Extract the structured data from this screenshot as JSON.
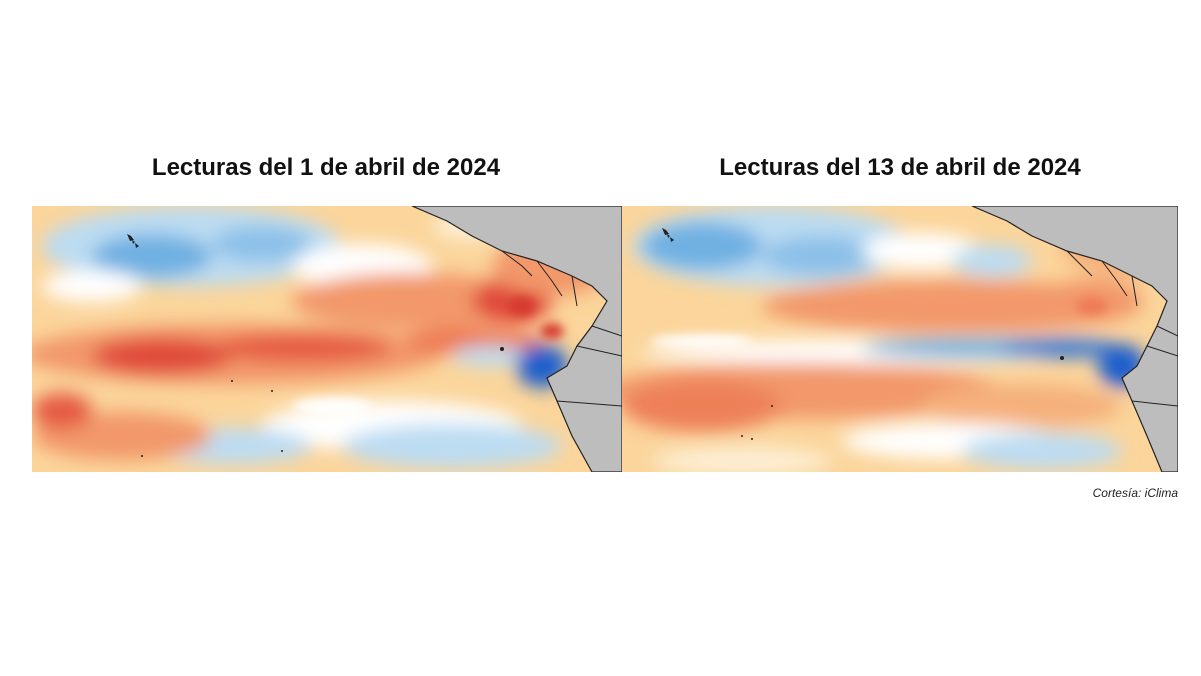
{
  "panels": [
    {
      "title": "Lecturas del 1 de abril de 2024",
      "map": "sea-surface-temperature-anomaly-map"
    },
    {
      "title": "Lecturas del 13 de abril de 2024",
      "map": "sea-surface-temperature-anomaly-map"
    }
  ],
  "credit": "Cortesía: iClima",
  "colors": {
    "warm_strong": "#e04a3a",
    "warm": "#f2986a",
    "warm_light": "#fbd59b",
    "neutral": "#ffffff",
    "cool_light": "#bcdcf2",
    "cool": "#6fb0e2",
    "cool_strong": "#1f5fcc",
    "land": "#bdbdbd",
    "coast": "#222222"
  }
}
